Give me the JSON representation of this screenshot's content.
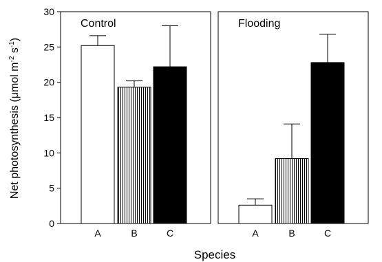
{
  "chart_data": {
    "type": "bar",
    "xlabel": "Species",
    "ylabel_main": "Net photosynthesis (μmol m",
    "ylabel_sup1": "-2",
    "ylabel_mid": " s",
    "ylabel_sup2": "-1",
    "ylabel_end": ")",
    "ylim": [
      0,
      30
    ],
    "yticks": [
      0,
      5,
      10,
      15,
      20,
      25,
      30
    ],
    "categories": [
      "A",
      "B",
      "C"
    ],
    "bar_styles": [
      "open",
      "vertical-hatch",
      "solid-black"
    ],
    "colors": {
      "solid": "#000000",
      "open": "#ffffff",
      "hatch_line": "#000000"
    },
    "panels": [
      {
        "label": "Control",
        "values": [
          25.2,
          19.3,
          22.2
        ],
        "error_upper": [
          1.4,
          0.9,
          5.8
        ]
      },
      {
        "label": "Flooding",
        "values": [
          2.6,
          9.2,
          22.8
        ],
        "error_upper": [
          0.9,
          4.9,
          4.0
        ]
      }
    ],
    "grid": false,
    "legend": "none"
  }
}
